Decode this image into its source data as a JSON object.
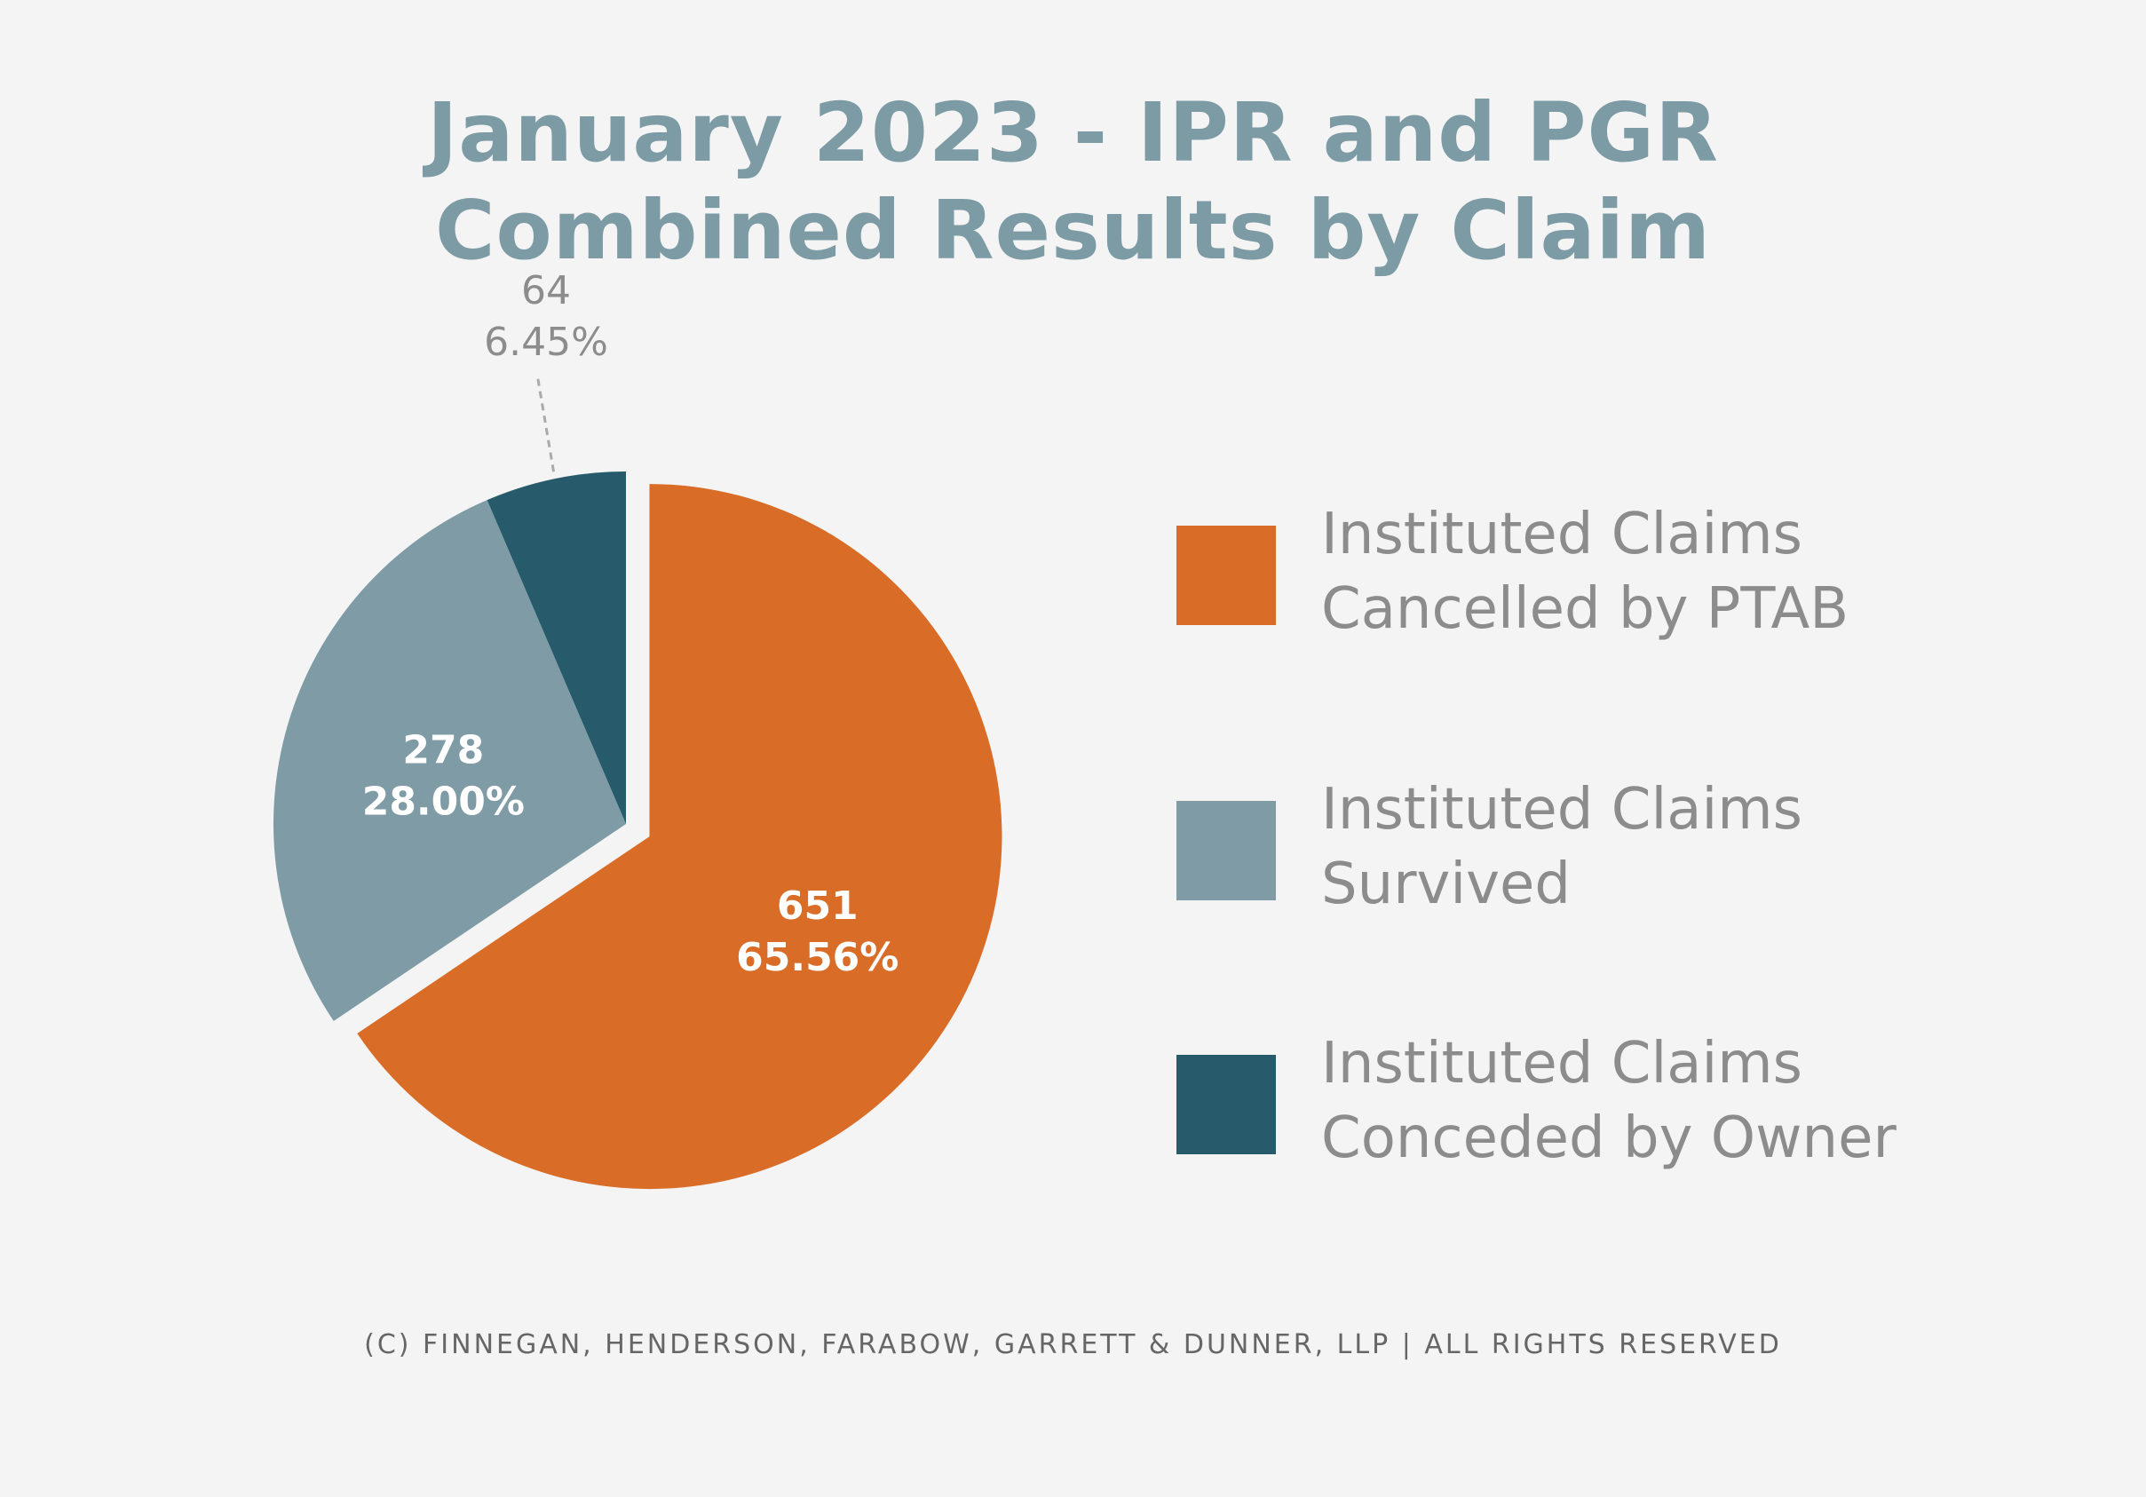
{
  "chart_data": {
    "type": "pie",
    "title": "January 2023 - IPR and PGR Combined Results by Claim",
    "title_lines": [
      "January 2023 - IPR and PGR",
      "Combined Results by Claim"
    ],
    "slices": [
      {
        "label": "Instituted Claims Cancelled by PTAB",
        "label_lines": [
          "Instituted Claims",
          "Cancelled by PTAB"
        ],
        "value": 651,
        "percent": "65.56%",
        "color": "#d96c27",
        "label_color": "#ffffff"
      },
      {
        "label": "Instituted Claims Survived",
        "label_lines": [
          "Instituted Claims",
          "Survived"
        ],
        "value": 278,
        "percent": "28.00%",
        "color": "#7f9ca6",
        "label_color": "#ffffff"
      },
      {
        "label": "Instituted Claims Conceded by Owner",
        "label_lines": [
          "Instituted Claims",
          "Conceded by Owner"
        ],
        "value": 64,
        "percent": "6.45%",
        "color": "#275b6b",
        "label_color": "#8c8c8c"
      }
    ],
    "legend_position": "right",
    "exploded_slice": "Instituted Claims Cancelled by PTAB"
  },
  "footer": "(c) Finnegan, Henderson, Farabow, Garrett & Dunner, LLP | All Rights Reserved",
  "colors": {
    "background": "#f4f4f4",
    "title": "#7d9ba5",
    "legend_text": "#8c8c8c",
    "footer_text": "#666666"
  }
}
